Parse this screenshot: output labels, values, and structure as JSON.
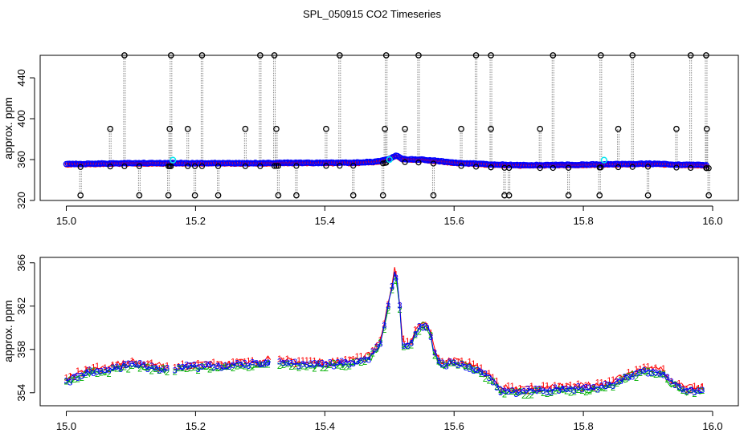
{
  "title": "SPL_050915  CO2 Timeseries",
  "colors": {
    "series1": "#ff0000",
    "series2": "#00b000",
    "series3": "#0000ff",
    "outlier": "#000000",
    "highlight": "#00e5ee",
    "dropline": "#888888"
  },
  "chart_data": [
    {
      "type": "scatter",
      "title": "SPL_050915  CO2 Timeseries",
      "xlabel": "",
      "ylabel": "approx. ppm",
      "xlim": [
        15.0,
        16.0
      ],
      "ylim": [
        320,
        462
      ],
      "xticks": [
        15.0,
        15.2,
        15.4,
        15.6,
        15.8,
        16.0
      ],
      "xtick_labels": [
        "15.0",
        "15.2",
        "15.4",
        "15.6",
        "15.8",
        "16.0"
      ],
      "yticks": [
        320,
        360,
        400,
        440
      ],
      "ytick_labels": [
        "320",
        "360",
        "400",
        "440"
      ],
      "baseline": [
        [
          15.0,
          355.5
        ],
        [
          15.05,
          356.0
        ],
        [
          15.1,
          356.5
        ],
        [
          15.15,
          356.5
        ],
        [
          15.2,
          356.5
        ],
        [
          15.25,
          356.5
        ],
        [
          15.3,
          356.5
        ],
        [
          15.33,
          356.8
        ],
        [
          15.4,
          356.8
        ],
        [
          15.45,
          357.0
        ],
        [
          15.48,
          358.0
        ],
        [
          15.5,
          360.5
        ],
        [
          15.51,
          364.0
        ],
        [
          15.52,
          360.5
        ],
        [
          15.55,
          360.0
        ],
        [
          15.57,
          359.0
        ],
        [
          15.6,
          357.0
        ],
        [
          15.65,
          355.5
        ],
        [
          15.7,
          354.5
        ],
        [
          15.8,
          355.0
        ],
        [
          15.85,
          355.5
        ],
        [
          15.9,
          356.0
        ],
        [
          15.95,
          355.0
        ],
        [
          16.0,
          354.5
        ]
      ],
      "outliers_high": [
        15.09,
        15.162,
        15.21,
        15.3,
        15.322,
        15.423,
        15.495,
        15.545,
        15.634,
        15.657,
        15.753,
        15.827,
        15.876,
        15.966,
        15.99
      ],
      "outliers_mid": [
        15.068,
        15.16,
        15.188,
        15.277,
        15.325,
        15.402,
        15.493,
        15.524,
        15.611,
        15.657,
        15.733,
        15.854,
        15.944,
        15.991
      ],
      "outliers_low": [
        15.022,
        15.113,
        15.158,
        15.199,
        15.235,
        15.328,
        15.356,
        15.444,
        15.49,
        15.568,
        15.678,
        15.685,
        15.777,
        15.825,
        15.9,
        15.994
      ],
      "highlight_points": [
        [
          15.165,
          359.5
        ],
        [
          15.5,
          360.0
        ],
        [
          15.832,
          359.5
        ]
      ],
      "high_value": 462,
      "mid_value": 390,
      "low_value": 325
    },
    {
      "type": "line",
      "xlabel": "",
      "ylabel": "approx. ppm",
      "xlim": [
        15.0,
        16.0
      ],
      "ylim": [
        352.8,
        366.5
      ],
      "xticks": [
        15.0,
        15.2,
        15.4,
        15.6,
        15.8,
        16.0
      ],
      "xtick_labels": [
        "15.0",
        "15.2",
        "15.4",
        "15.6",
        "15.8",
        "16.0"
      ],
      "yticks": [
        354,
        358,
        362,
        366
      ],
      "ytick_labels": [
        "354",
        "358",
        "362",
        "366"
      ],
      "point_symbols": [
        "1",
        "2",
        "3"
      ],
      "series": [
        {
          "name": "1",
          "color": "#ff0000",
          "offset": 0.25
        },
        {
          "name": "2",
          "color": "#00b000",
          "offset": -0.15
        },
        {
          "name": "3",
          "color": "#0000ff",
          "offset": 0.0
        }
      ],
      "gaps": [
        [
          15.158,
          15.168
        ],
        [
          15.318,
          15.33
        ]
      ],
      "curve": [
        [
          15.0,
          355.0
        ],
        [
          15.02,
          355.7
        ],
        [
          15.04,
          356.0
        ],
        [
          15.06,
          356.0
        ],
        [
          15.08,
          356.4
        ],
        [
          15.1,
          356.6
        ],
        [
          15.13,
          356.4
        ],
        [
          15.155,
          356.2
        ],
        [
          15.17,
          356.3
        ],
        [
          15.2,
          356.4
        ],
        [
          15.25,
          356.5
        ],
        [
          15.3,
          356.7
        ],
        [
          15.316,
          356.9
        ],
        [
          15.332,
          356.8
        ],
        [
          15.36,
          356.6
        ],
        [
          15.4,
          356.6
        ],
        [
          15.44,
          356.8
        ],
        [
          15.47,
          357.3
        ],
        [
          15.485,
          358.5
        ],
        [
          15.495,
          361.0
        ],
        [
          15.503,
          363.5
        ],
        [
          15.508,
          365.2
        ],
        [
          15.514,
          363.6
        ],
        [
          15.52,
          358.6
        ],
        [
          15.527,
          358.3
        ],
        [
          15.535,
          358.8
        ],
        [
          15.545,
          360.0
        ],
        [
          15.555,
          360.3
        ],
        [
          15.563,
          359.6
        ],
        [
          15.57,
          357.5
        ],
        [
          15.58,
          356.6
        ],
        [
          15.6,
          356.8
        ],
        [
          15.615,
          356.6
        ],
        [
          15.63,
          356.3
        ],
        [
          15.645,
          355.8
        ],
        [
          15.66,
          355.2
        ],
        [
          15.67,
          354.3
        ],
        [
          15.7,
          354.1
        ],
        [
          15.75,
          354.3
        ],
        [
          15.79,
          354.4
        ],
        [
          15.83,
          354.5
        ],
        [
          15.85,
          355.0
        ],
        [
          15.87,
          355.5
        ],
        [
          15.89,
          356.0
        ],
        [
          15.91,
          356.0
        ],
        [
          15.925,
          355.8
        ],
        [
          15.935,
          354.9
        ],
        [
          15.96,
          354.2
        ],
        [
          15.985,
          354.3
        ]
      ]
    }
  ]
}
